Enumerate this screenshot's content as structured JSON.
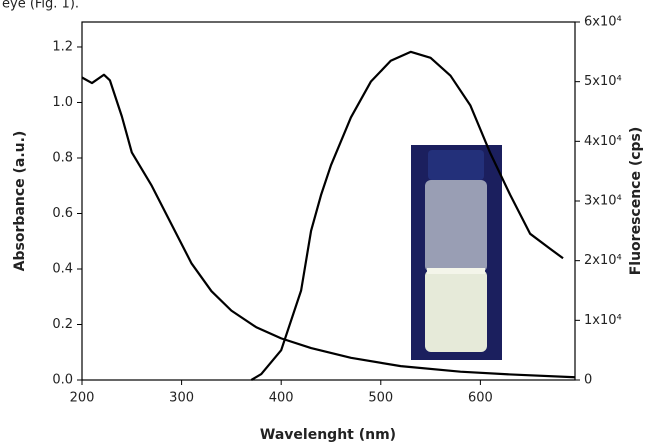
{
  "chart_data": {
    "type": "line",
    "caption": "eye (Fig. 1).",
    "x_label": "Wavelenght (nm)",
    "y_label": "Absorbance (a.u.)",
    "y2_label": "Fluorescence (cps)",
    "xlim": [
      200,
      695
    ],
    "xticks": [
      200,
      300,
      400,
      500,
      600
    ],
    "ylim": [
      0,
      1.29
    ],
    "yticks": [
      {
        "value": 0,
        "label": "0.0"
      },
      0.2,
      0.4,
      0.6,
      0.8,
      {
        "value": 1,
        "label": "1.0"
      },
      1.2
    ],
    "y2lim": [
      0,
      60000
    ],
    "y2ticks": [
      0,
      {
        "value": 10000,
        "label": "1x10⁴"
      },
      {
        "value": 20000,
        "label": "2x10⁴"
      },
      {
        "value": 30000,
        "label": "3x10⁴"
      },
      {
        "value": 40000,
        "label": "4x10⁴"
      },
      {
        "value": 50000,
        "label": "5x10⁴"
      },
      {
        "value": 60000,
        "label": "6x10⁴"
      }
    ],
    "series": [
      {
        "color": "#000000",
        "x": [
          200,
          210,
          222,
          228,
          240,
          250,
          270,
          290,
          310,
          330,
          350,
          375,
          400,
          430,
          470,
          520,
          580,
          630,
          695
        ],
        "values": [
          1.09,
          1.07,
          1.1,
          1.08,
          0.95,
          0.82,
          0.7,
          0.56,
          0.42,
          0.32,
          0.25,
          0.19,
          0.15,
          0.115,
          0.08,
          0.05,
          0.03,
          0.02,
          0.01
        ]
      },
      {
        "color": "#000000",
        "axis": "y2",
        "x": [
          370,
          380,
          400,
          420,
          430,
          440,
          450,
          470,
          490,
          510,
          530,
          550,
          570,
          590,
          610,
          630,
          650,
          670,
          683
        ],
        "values": [
          0,
          1000,
          5000,
          15000,
          25000,
          31000,
          36000,
          44000,
          50000,
          53500,
          55000,
          54000,
          51000,
          46000,
          38000,
          31000,
          24500,
          22000,
          20400
        ]
      }
    ]
  }
}
